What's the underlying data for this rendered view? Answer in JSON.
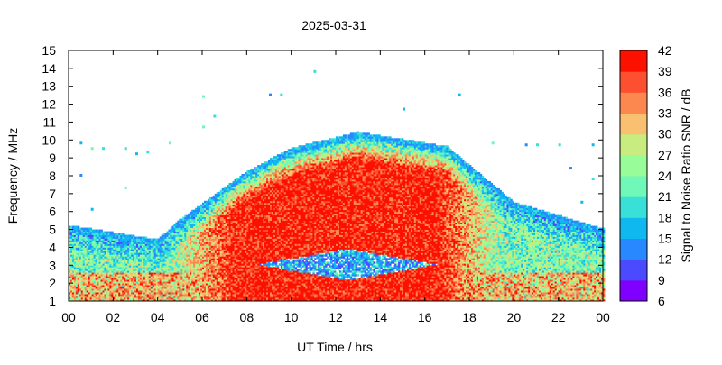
{
  "chart_data": {
    "type": "heatmap",
    "title": "2025-03-31",
    "xlabel": "UT Time / hrs",
    "ylabel": "Frequency / MHz",
    "xlim": [
      0,
      24
    ],
    "ylim": [
      1,
      15
    ],
    "x_ticks": [
      "00",
      "02",
      "04",
      "06",
      "08",
      "10",
      "12",
      "14",
      "16",
      "18",
      "20",
      "22",
      "00"
    ],
    "y_ticks": [
      "1",
      "2",
      "3",
      "4",
      "5",
      "6",
      "7",
      "8",
      "9",
      "10",
      "11",
      "12",
      "13",
      "14",
      "15"
    ],
    "colorbar": {
      "label": "Signal to Noise Ratio SNR / dB",
      "range": [
        6,
        42
      ],
      "ticks": [
        "6",
        "9",
        "12",
        "15",
        "18",
        "21",
        "24",
        "27",
        "30",
        "33",
        "36",
        "39",
        "42"
      ],
      "colors": [
        "#8000ff",
        "#4a4aff",
        "#2888ff",
        "#10b8f0",
        "#38e0d8",
        "#70f8b8",
        "#98fc98",
        "#c8ec80",
        "#f8c070",
        "#fc8850",
        "#fc5030",
        "#fc1000"
      ]
    },
    "grid": false,
    "envelope": {
      "description_points": [
        {
          "t": 0.0,
          "f_top": 5.2
        },
        {
          "t": 4.0,
          "f_top": 4.4
        },
        {
          "t": 5.0,
          "f_top": 5.5
        },
        {
          "t": 8.0,
          "f_top": 8.2
        },
        {
          "t": 10.0,
          "f_top": 9.5
        },
        {
          "t": 13.0,
          "f_top": 10.4
        },
        {
          "t": 17.0,
          "f_top": 9.6
        },
        {
          "t": 20.0,
          "f_top": 6.5
        },
        {
          "t": 24.0,
          "f_top": 5.0
        }
      ],
      "f_bottom": 1.0,
      "core_peak_snr": 41,
      "quiet_gap": {
        "t_start": 8.5,
        "t_end": 16.5,
        "f_center": 3.0
      }
    }
  }
}
